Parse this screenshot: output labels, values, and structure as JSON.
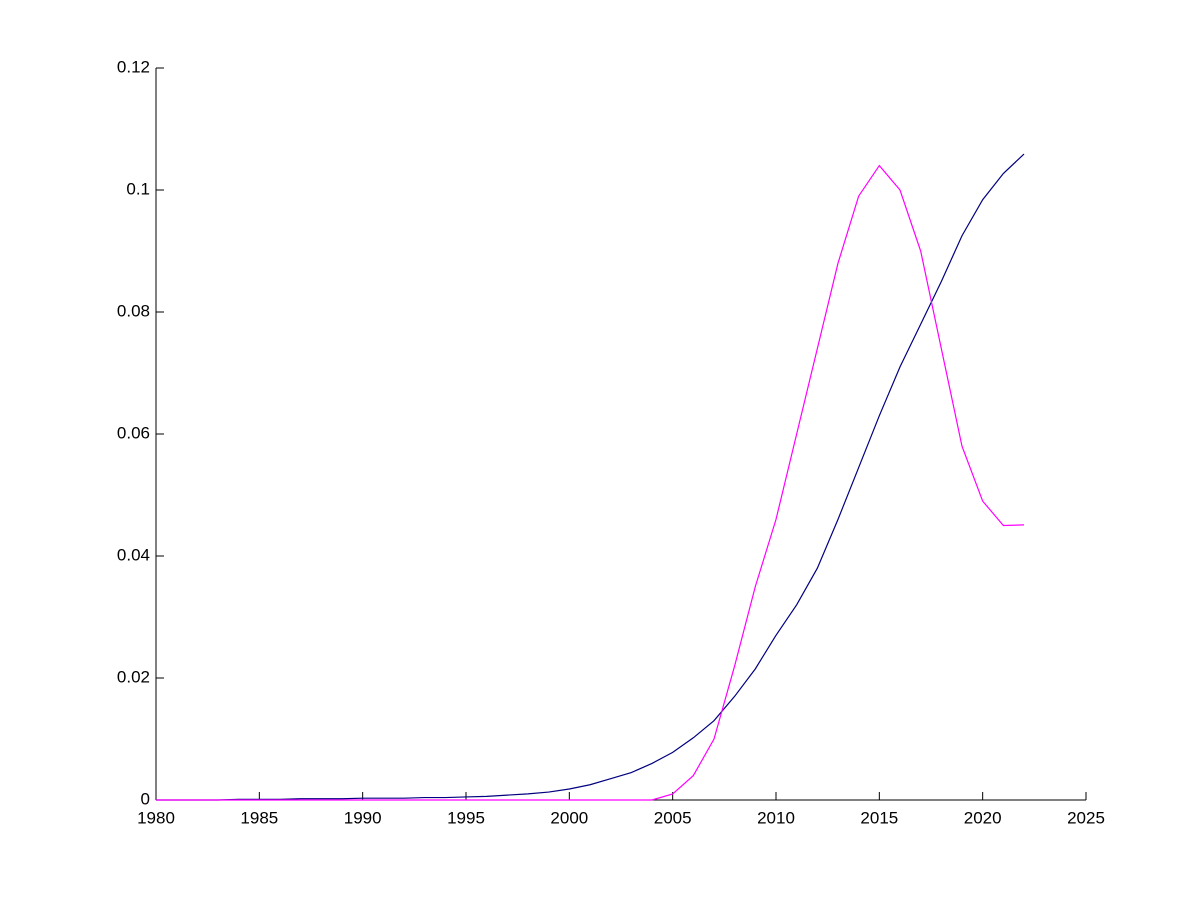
{
  "chart_data": {
    "type": "line",
    "x": [
      1980,
      1981,
      1982,
      1983,
      1984,
      1985,
      1986,
      1987,
      1988,
      1989,
      1990,
      1991,
      1992,
      1993,
      1994,
      1995,
      1996,
      1997,
      1998,
      1999,
      2000,
      2001,
      2002,
      2003,
      2004,
      2005,
      2006,
      2007,
      2008,
      2009,
      2010,
      2011,
      2012,
      2013,
      2014,
      2015,
      2016,
      2017,
      2018,
      2019,
      2020,
      2021,
      2022
    ],
    "series": [
      {
        "color": "#000080",
        "values": [
          0,
          0,
          0,
          0,
          0.0001,
          0.0001,
          0.0001,
          0.0002,
          0.0002,
          0.0002,
          0.0003,
          0.0003,
          0.0003,
          0.0004,
          0.0004,
          0.0005,
          0.0006,
          0.0008,
          0.001,
          0.0013,
          0.0018,
          0.0025,
          0.0035,
          0.0045,
          0.006,
          0.0078,
          0.0102,
          0.013,
          0.017,
          0.0215,
          0.027,
          0.032,
          0.038,
          0.046,
          0.0545,
          0.063,
          0.071,
          0.078,
          0.085,
          0.0925,
          0.0984,
          0.1027,
          0.1059
        ]
      },
      {
        "color": "#ff00ff",
        "values": [
          0,
          0,
          0,
          0,
          0,
          0,
          0,
          0,
          0,
          0,
          0,
          0,
          0,
          0,
          0,
          0,
          0,
          0,
          0,
          0,
          0,
          0,
          0,
          0,
          0,
          0.001,
          0.004,
          0.01,
          0.022,
          0.035,
          0.046,
          0.06,
          0.074,
          0.088,
          0.099,
          0.104,
          0.1,
          0.09,
          0.074,
          0.058,
          0.049,
          0.045,
          0.0451
        ]
      }
    ],
    "xlim": [
      1980,
      2025
    ],
    "xticks": [
      1980,
      1985,
      1990,
      1995,
      2000,
      2005,
      2010,
      2015,
      2020,
      2025
    ],
    "ylim": [
      0,
      0.12
    ],
    "yticks": [
      0,
      0.02,
      0.04,
      0.06,
      0.08,
      0.1,
      0.12
    ]
  }
}
